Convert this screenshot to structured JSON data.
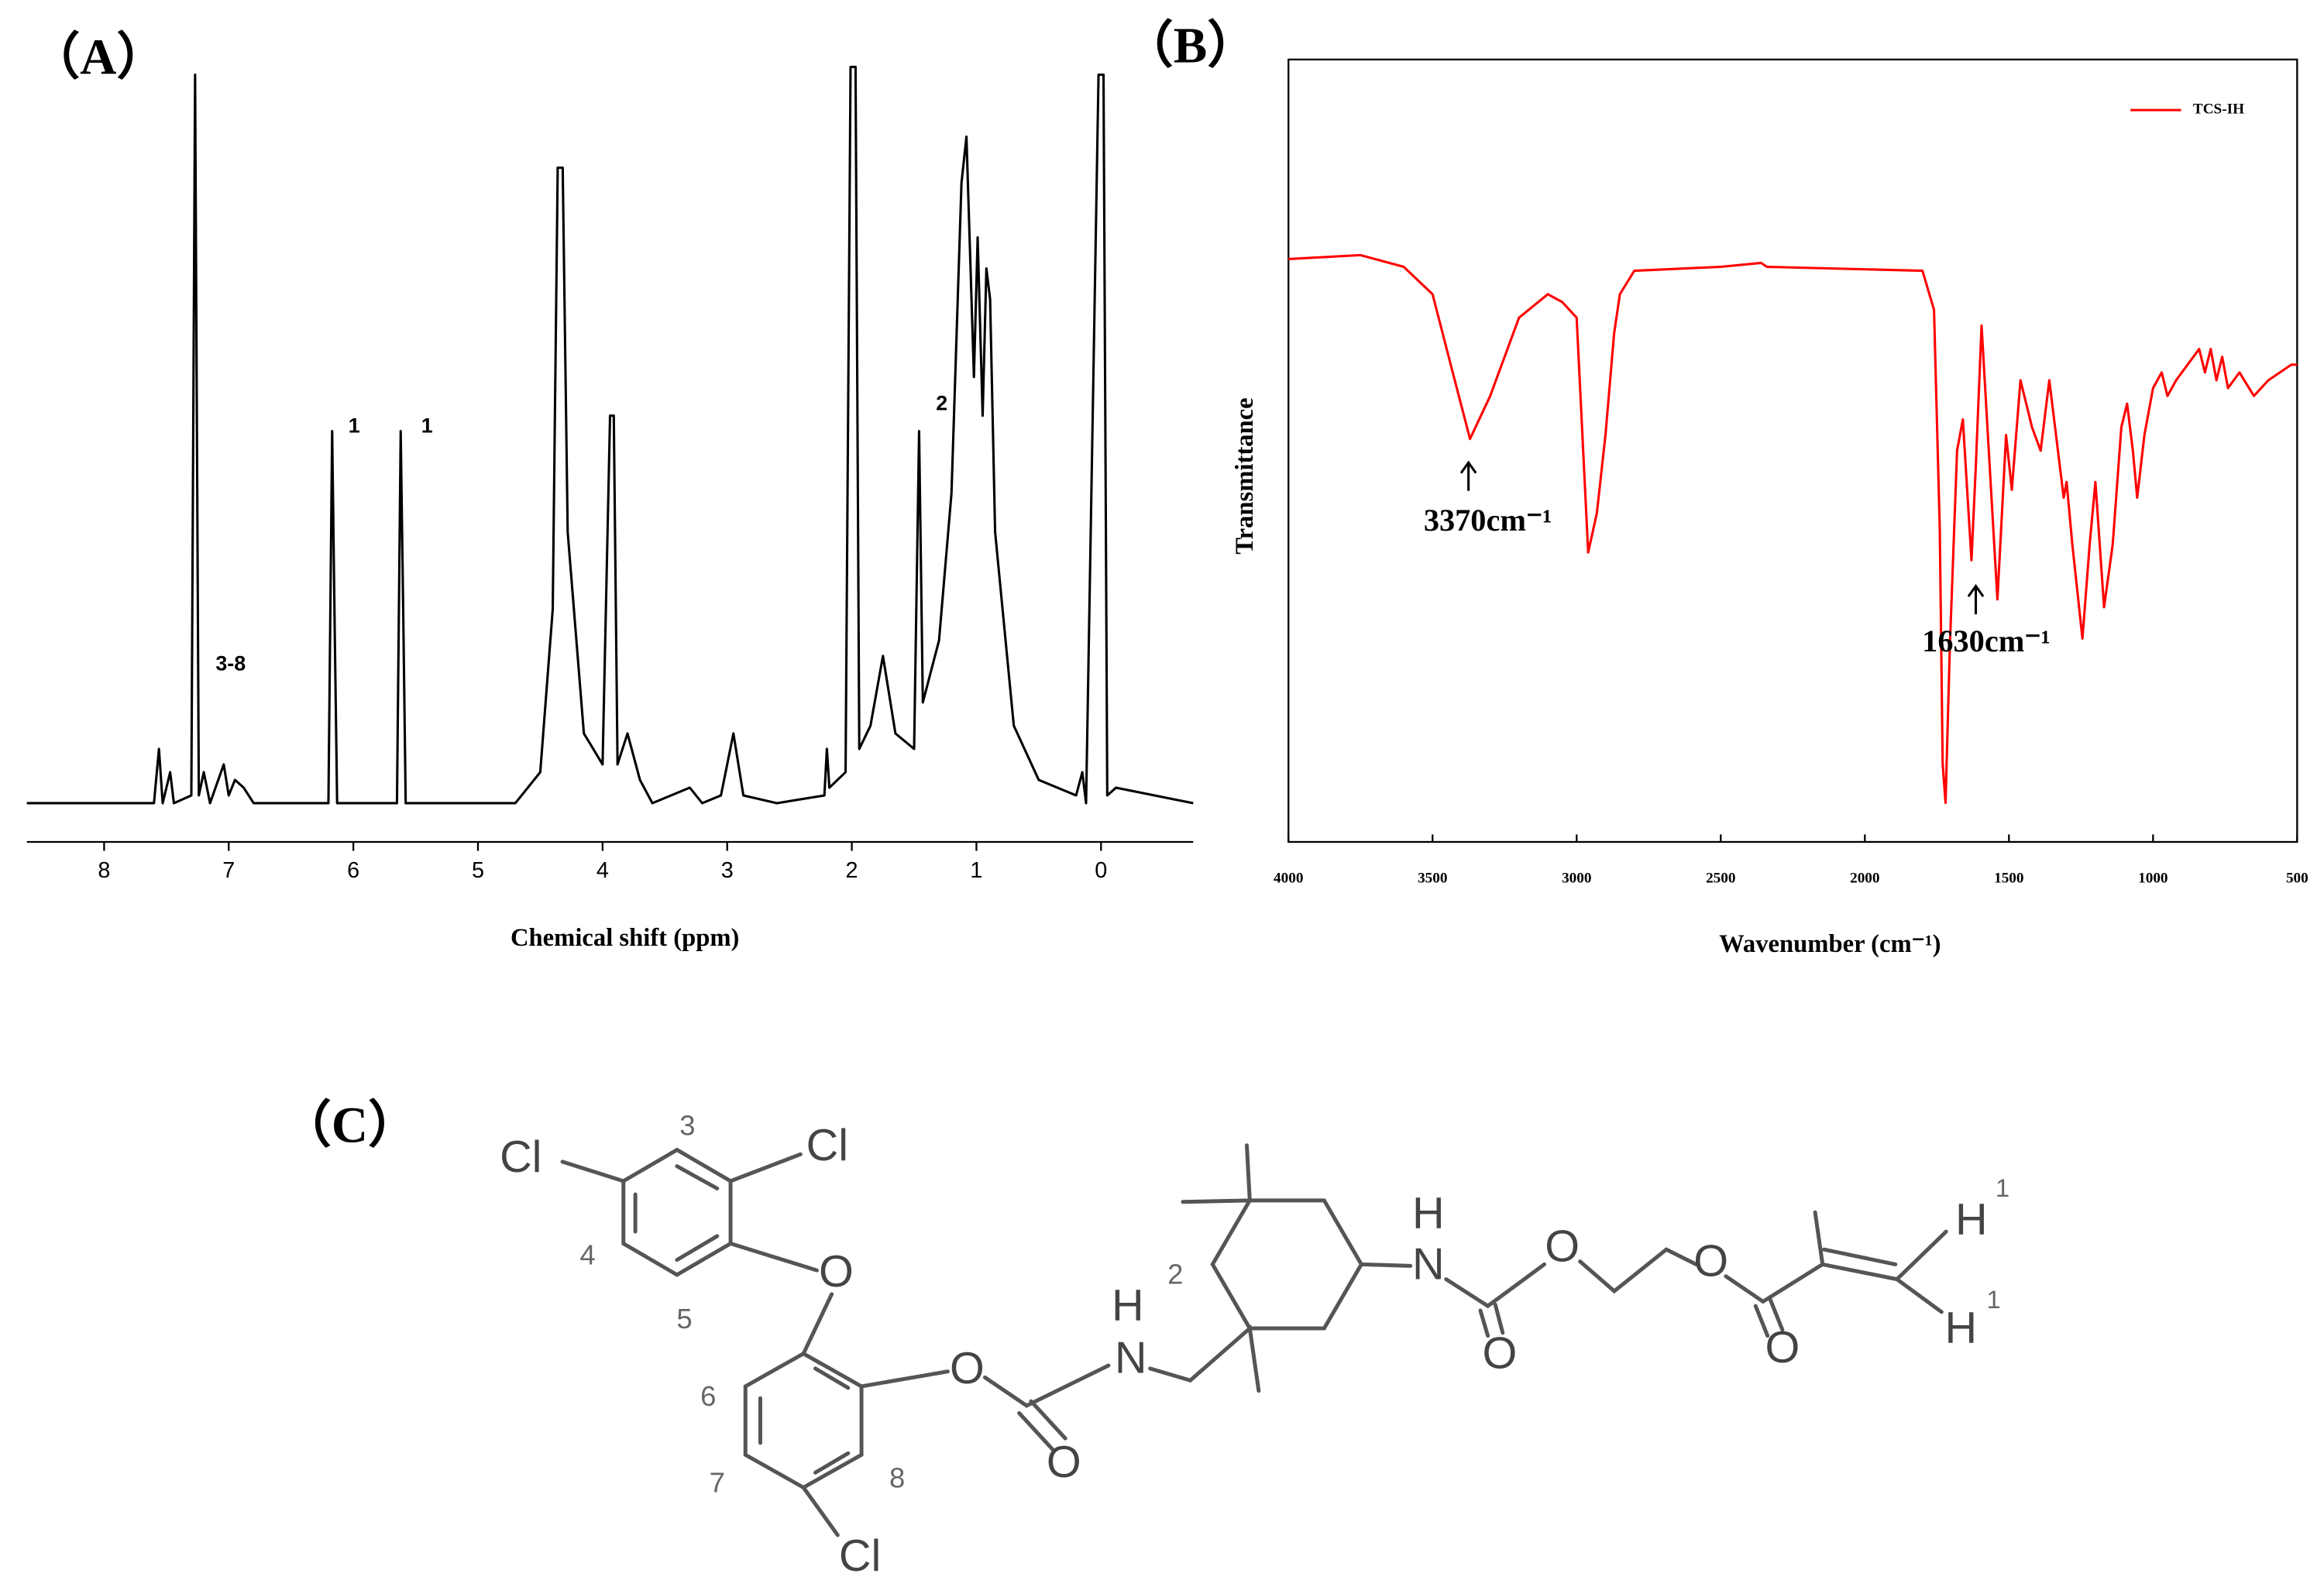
{
  "chart_data": [
    {
      "type": "line",
      "title": "（A）",
      "x_label": "Chemical shift (ppm)",
      "x": [
        8.62,
        7.6,
        7.56,
        7.53,
        7.47,
        7.44,
        7.3,
        7.27,
        7.24,
        7.2,
        7.15,
        7.04,
        7.0,
        6.95,
        6.88,
        6.8,
        6.2,
        6.17,
        6.15,
        6.13,
        5.65,
        5.62,
        5.6,
        5.58,
        4.7,
        4.5,
        4.4,
        4.36,
        4.32,
        4.28,
        4.15,
        4.0,
        3.94,
        3.91,
        3.88,
        3.8,
        3.7,
        3.6,
        3.3,
        3.2,
        3.05,
        2.95,
        2.87,
        2.6,
        2.22,
        2.2,
        2.18,
        2.05,
        2.01,
        1.97,
        1.94,
        1.85,
        1.75,
        1.65,
        1.5,
        1.46,
        1.43,
        1.3,
        1.2,
        1.12,
        1.08,
        1.02,
        0.99,
        0.95,
        0.92,
        0.89,
        0.85,
        0.7,
        0.5,
        0.2,
        0.15,
        0.12,
        0.02,
        -0.02,
        -0.05,
        -0.12,
        -0.74
      ],
      "series": [
        {
          "color": "#000000",
          "values": [
            5,
            5,
            12,
            5,
            9,
            5,
            6,
            99,
            6,
            9,
            5,
            10,
            6,
            8,
            7,
            5,
            5,
            53,
            28,
            5,
            5,
            53,
            30,
            5,
            5,
            9,
            30,
            87,
            87,
            40,
            14,
            10,
            55,
            55,
            10,
            14,
            8,
            5,
            7,
            5,
            6,
            14,
            6,
            5,
            6,
            12,
            7,
            9,
            100,
            100,
            12,
            15,
            24,
            14,
            12,
            53,
            18,
            26,
            45,
            85,
            91,
            60,
            78,
            55,
            74,
            70,
            40,
            15,
            8,
            6,
            9,
            5,
            99,
            99,
            6,
            7,
            5
          ]
        }
      ],
      "xlim": [
        8.62,
        -0.74
      ],
      "xticks": [
        8,
        7,
        6,
        5,
        4,
        3,
        2,
        1,
        0
      ],
      "ylim": [
        0,
        100
      ],
      "annotations": [
        "1",
        "1",
        "2",
        "3-8"
      ]
    },
    {
      "type": "line",
      "title": "（B）",
      "x_label": "Wavenumber (cm⁻¹)",
      "y_label": "Transmittance",
      "x": [
        4000,
        3750,
        3600,
        3500,
        3430,
        3370,
        3300,
        3200,
        3100,
        3050,
        3000,
        2960,
        2930,
        2900,
        2870,
        2850,
        2800,
        2500,
        2360,
        2340,
        1800,
        1760,
        1740,
        1730,
        1720,
        1705,
        1680,
        1660,
        1640,
        1630,
        1615,
        1595,
        1570,
        1540,
        1510,
        1490,
        1460,
        1440,
        1420,
        1390,
        1360,
        1340,
        1310,
        1300,
        1280,
        1245,
        1220,
        1200,
        1170,
        1140,
        1110,
        1090,
        1070,
        1055,
        1030,
        1000,
        970,
        950,
        920,
        900,
        860,
        840,
        820,
        800,
        780,
        760,
        740,
        700,
        650,
        600,
        520,
        500
      ],
      "series": [
        {
          "name": "TCS-IH",
          "color": "#ff0000",
          "values": [
            74.5,
            75,
            73.5,
            70,
            60,
            51.5,
            57,
            67,
            70,
            69,
            67,
            37,
            42,
            52,
            65,
            70,
            73,
            73.5,
            74,
            73.5,
            73,
            68,
            40,
            10,
            5,
            25,
            50,
            54,
            42,
            36,
            48,
            66,
            50,
            31,
            52,
            45,
            59,
            56,
            53,
            50,
            59,
            53,
            44,
            46,
            38,
            26,
            38,
            46,
            30,
            38,
            53,
            56,
            50,
            44,
            52,
            58,
            60,
            57,
            59,
            60,
            62,
            63,
            60,
            63,
            59,
            62,
            58,
            60,
            57,
            59,
            61,
            61
          ]
        }
      ],
      "xlim": [
        4000,
        500
      ],
      "xticks": [
        4000,
        3500,
        3000,
        2500,
        2000,
        1500,
        1000,
        500
      ],
      "ylim": [
        0,
        100
      ],
      "legend": "upper right",
      "annotations": [
        "3370cm⁻¹",
        "1630cm⁻¹"
      ]
    }
  ],
  "structure": {
    "title": "（C）",
    "atoms": [
      "Cl",
      "Cl",
      "3",
      "4",
      "5",
      "O",
      "6",
      "7",
      "8",
      "Cl",
      "O",
      "O",
      "H",
      "N",
      "2",
      "H",
      "N",
      "O",
      "O",
      "O",
      "O",
      "H",
      "1",
      "H",
      "1"
    ]
  }
}
